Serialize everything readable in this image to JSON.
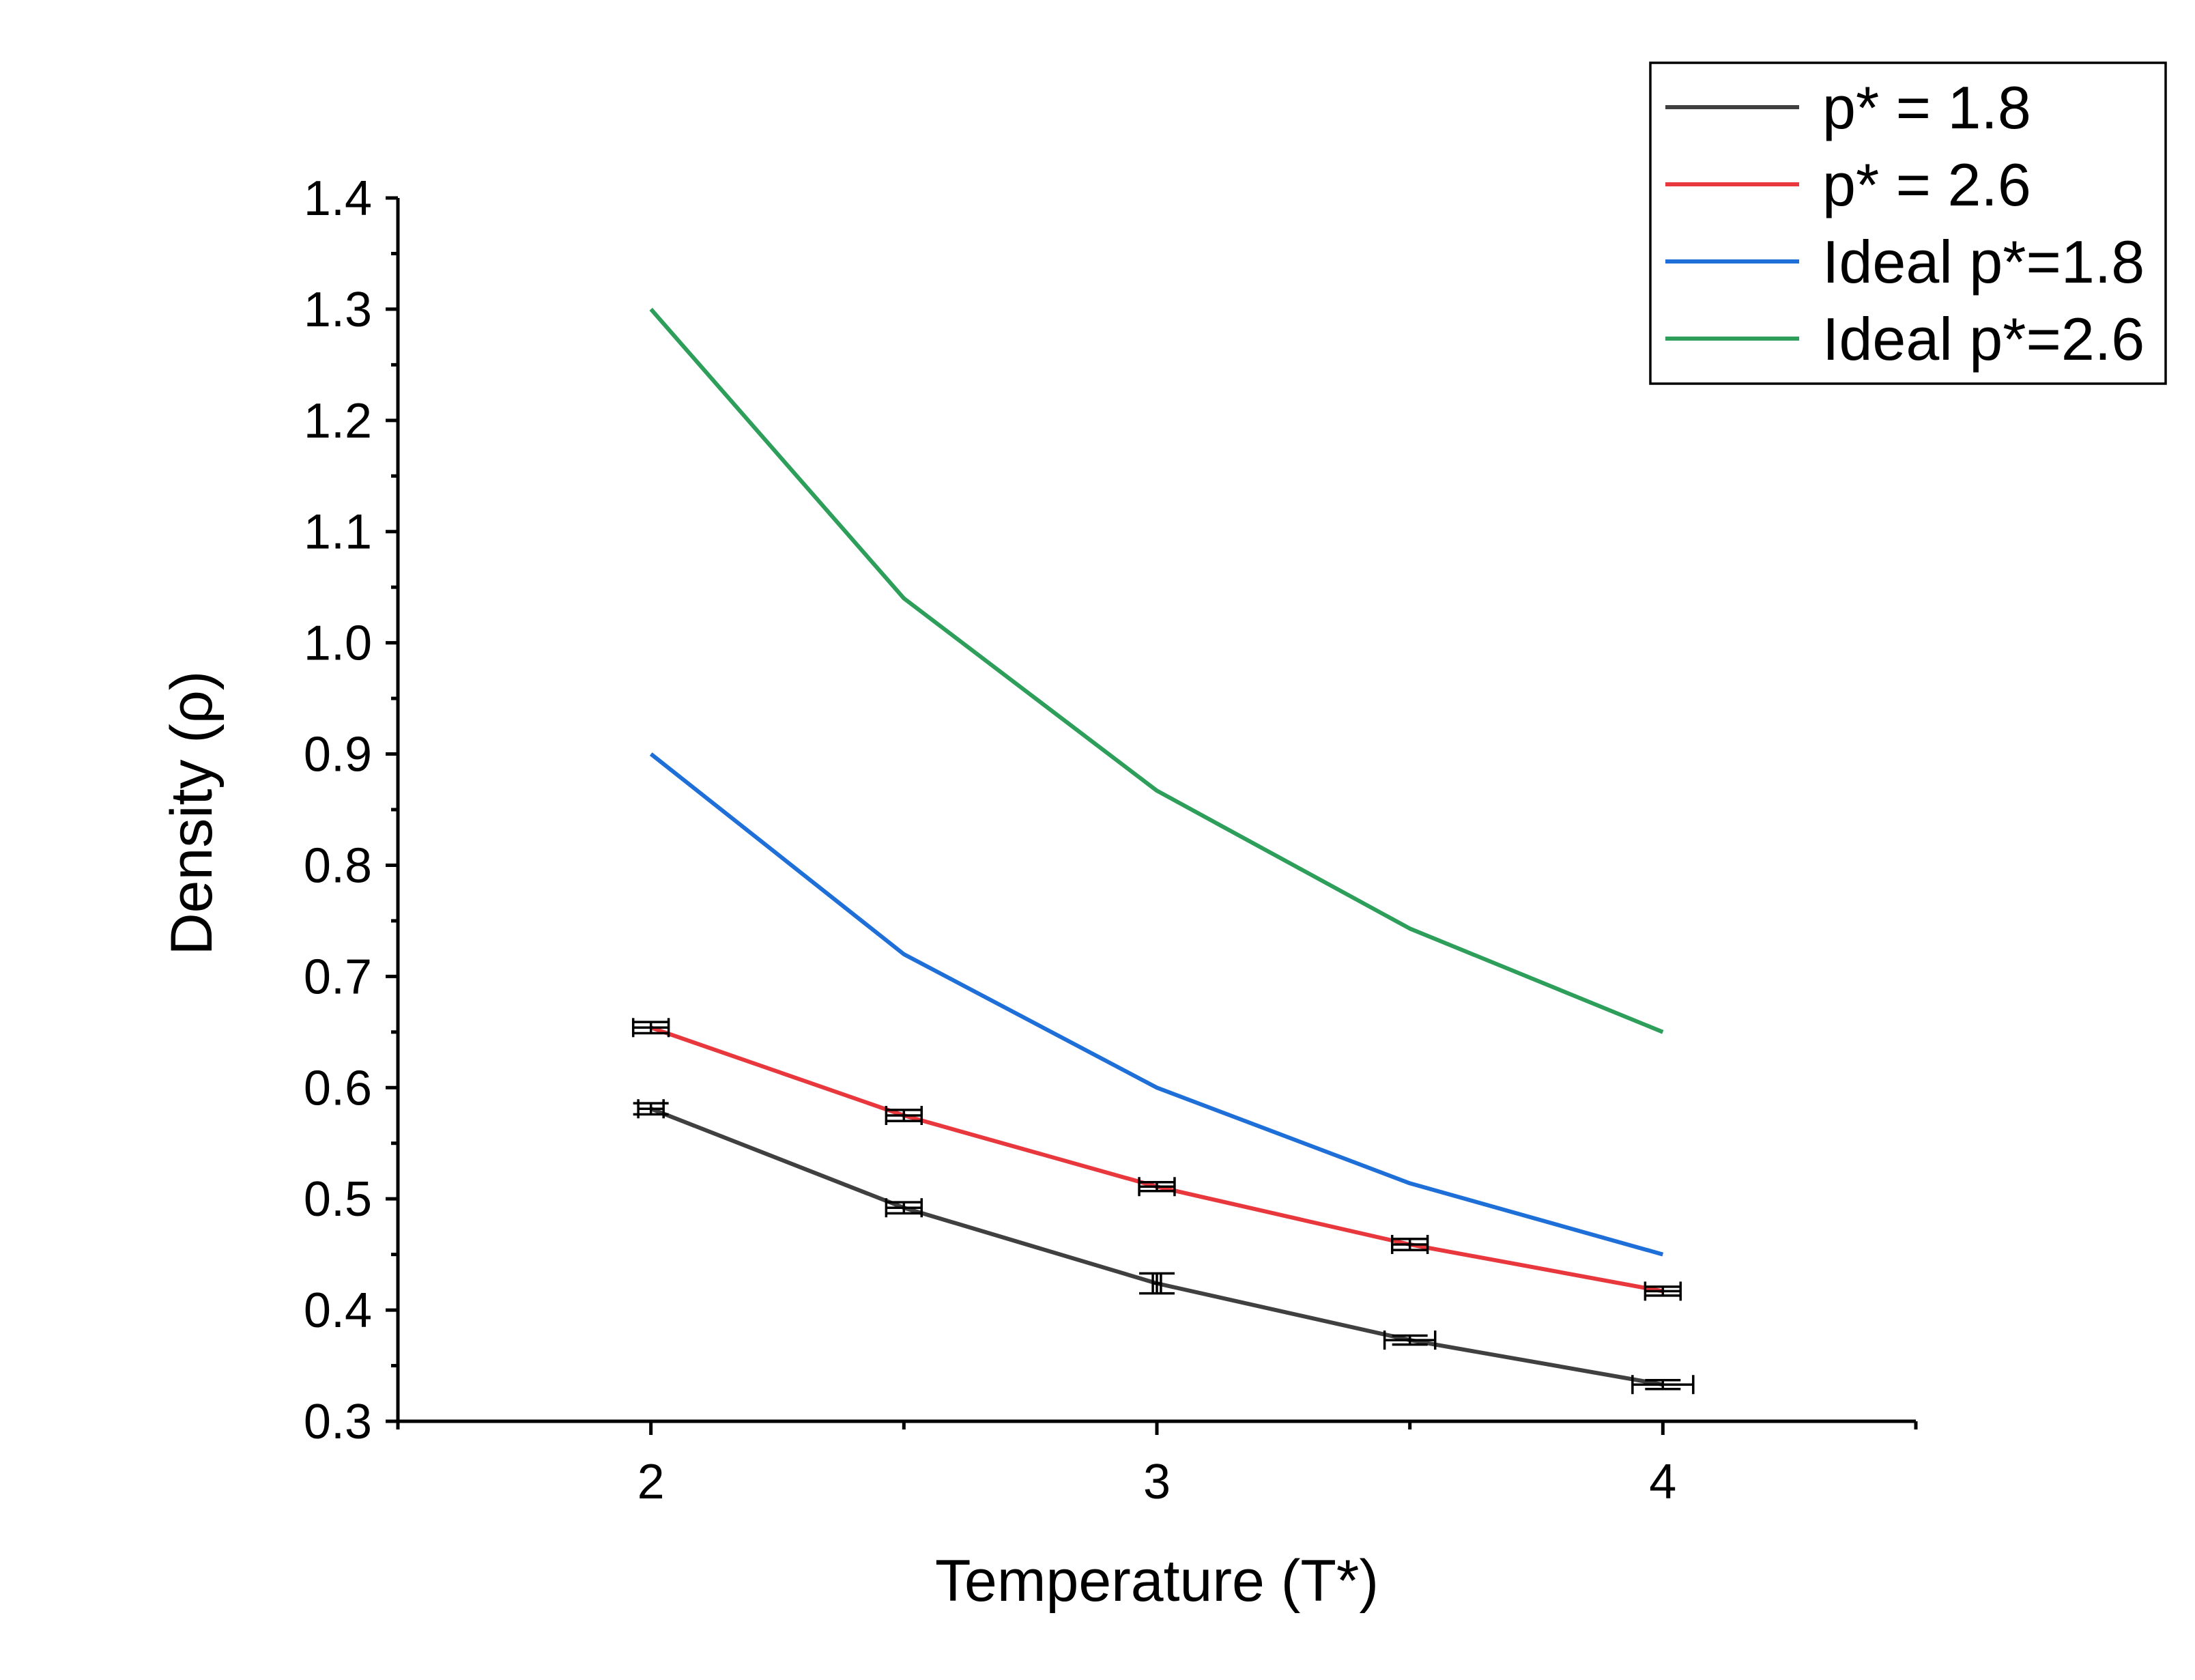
{
  "chart_data": {
    "type": "line",
    "title": "",
    "xlabel": "Temperature (T*)",
    "ylabel": "Density (ρ)",
    "xlim": [
      1.5,
      4.5
    ],
    "ylim": [
      0.3,
      1.4
    ],
    "x_ticks": [
      2,
      3,
      4
    ],
    "y_ticks": [
      0.3,
      0.4,
      0.5,
      0.6,
      0.7,
      0.8,
      0.9,
      1.0,
      1.1,
      1.2,
      1.3,
      1.4
    ],
    "y_tick_labels": [
      "0.3",
      "0.4",
      "0.5",
      "0.6",
      "0.7",
      "0.8",
      "0.9",
      "1.0",
      "1.1",
      "1.2",
      "1.3",
      "1.4"
    ],
    "grid": false,
    "legend_position": "top-right",
    "series": [
      {
        "name": "p* = 1.8",
        "color": "#404040",
        "x": [
          2.0,
          2.5,
          3.0,
          3.5,
          4.0
        ],
        "y": [
          0.581,
          0.492,
          0.424,
          0.373,
          0.333
        ],
        "y_err": [
          0.005,
          0.005,
          0.009,
          0.004,
          0.004
        ],
        "x_err": [
          0.025,
          0.035,
          0.008,
          0.05,
          0.06
        ]
      },
      {
        "name": "p* = 2.6",
        "color": "#e8383d",
        "x": [
          2.0,
          2.5,
          3.0,
          3.5,
          4.0
        ],
        "y": [
          0.654,
          0.575,
          0.511,
          0.459,
          0.417
        ],
        "y_err": [
          0.005,
          0.005,
          0.004,
          0.005,
          0.004
        ],
        "x_err": [
          0.035,
          0.035,
          0.035,
          0.035,
          0.035
        ]
      },
      {
        "name": "Ideal p*=1.8",
        "color": "#1f6fd8",
        "x": [
          2.0,
          2.5,
          3.0,
          3.5,
          4.0
        ],
        "y": [
          0.9,
          0.72,
          0.6,
          0.514,
          0.45
        ]
      },
      {
        "name": "Ideal p*=2.6",
        "color": "#2e9e5b",
        "x": [
          2.0,
          2.5,
          3.0,
          3.5,
          4.0
        ],
        "y": [
          1.3,
          1.04,
          0.867,
          0.743,
          0.65
        ]
      }
    ]
  }
}
